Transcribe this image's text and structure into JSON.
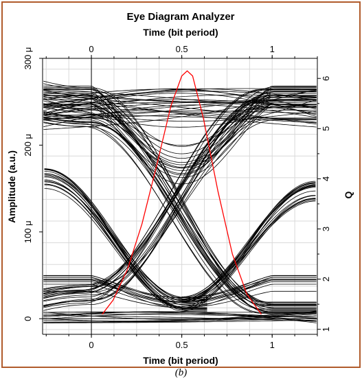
{
  "chart_data": {
    "type": "line",
    "title": "Eye Diagram Analyzer",
    "xlabel": "Time (bit period)",
    "x2label": "Time (bit period)",
    "ylabel": "Amplitude (a.u.)",
    "y2label": "Q",
    "xlim": [
      -0.27,
      1.25
    ],
    "ylim": [
      -18,
      300
    ],
    "y2lim": [
      0.9,
      6.4
    ],
    "xticks": [
      0,
      0.5,
      1
    ],
    "xtick_labels": [
      "0",
      "0.5",
      "1"
    ],
    "yticks": [
      0,
      100,
      200,
      300
    ],
    "ytick_labels": [
      "0",
      "100 μ",
      "200 μ",
      "300 μ"
    ],
    "y2ticks": [
      1,
      2,
      3,
      4,
      5,
      6
    ],
    "y2tick_labels": [
      "1",
      "2",
      "3",
      "4",
      "5",
      "6"
    ],
    "grid": true,
    "series": [
      {
        "color": "#000000",
        "groups": [
          {
            "kind": "high",
            "level_range": [
              218,
              268
            ],
            "count": 26
          },
          {
            "kind": "low",
            "level_range": [
              -5,
              9
            ],
            "count": 14
          },
          {
            "kind": "rising",
            "from": [
              15,
              40
            ],
            "to": [
              220,
              268
            ],
            "count": 20
          },
          {
            "kind": "falling",
            "from": [
              220,
              268
            ],
            "to": [
              5,
              20
            ],
            "count": 20
          },
          {
            "kind": "mid_dip",
            "level_range": [
              155,
              200
            ],
            "count": 14
          },
          {
            "kind": "mid_bump",
            "level_range": [
              6,
              25
            ],
            "count": 10
          }
        ]
      },
      {
        "color": "#ff0000",
        "axis": "Q",
        "x": [
          0.06,
          0.12,
          0.2,
          0.28,
          0.36,
          0.44,
          0.5,
          0.53,
          0.56,
          0.62,
          0.7,
          0.78,
          0.86,
          0.94
        ],
        "y": [
          1.3,
          1.58,
          2.2,
          3.1,
          4.25,
          5.45,
          6.05,
          6.15,
          6.05,
          5.2,
          3.75,
          2.5,
          1.7,
          1.3
        ]
      }
    ]
  },
  "caption": "(b)"
}
